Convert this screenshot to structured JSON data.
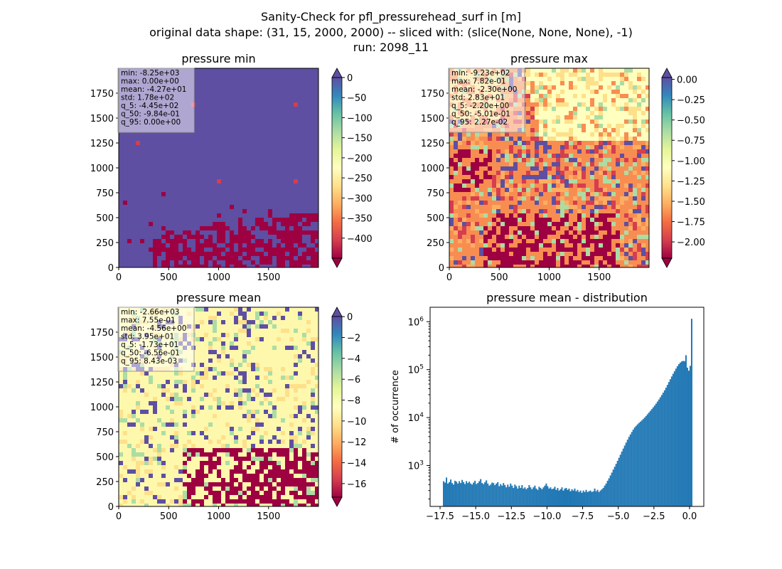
{
  "figure": {
    "title_lines": [
      "Sanity-Check for pfl_pressurehead_surf in [m]",
      "original data shape: (31, 15, 2000, 2000) -- sliced with: (slice(None, None, None), -1)",
      "run: 2098_11"
    ]
  },
  "chart_data": [
    {
      "type": "heatmap",
      "title": "pressure min",
      "xlim": [
        0,
        2000
      ],
      "ylim": [
        0,
        2000
      ],
      "xticks": [
        0,
        500,
        1000,
        1500
      ],
      "yticks": [
        0,
        250,
        500,
        750,
        1000,
        1250,
        1500,
        1750
      ],
      "colorbar": {
        "range": [
          -450,
          0
        ],
        "ticks": [
          0,
          -50,
          -100,
          -150,
          -200,
          -250,
          -300,
          -350,
          -400
        ],
        "tick_labels": [
          "0",
          "−50",
          "−100",
          "−150",
          "−200",
          "−250",
          "−300",
          "−350",
          "−400"
        ],
        "colormap": "Spectral",
        "extend": "both"
      },
      "stats": [
        "min: -8.25e+03",
        "max: 0.00e+00",
        "mean: -4.27e+01",
        "std: 1.78e+02",
        "q_5: -4.45e+02",
        "q_50: -9.84e-01",
        "q_95: 0.00e+00"
      ]
    },
    {
      "type": "heatmap",
      "title": "pressure max",
      "xlim": [
        0,
        2000
      ],
      "ylim": [
        0,
        2000
      ],
      "xticks": [
        0,
        500,
        1000,
        1500
      ],
      "yticks": [
        0,
        250,
        500,
        750,
        1000,
        1250,
        1500,
        1750
      ],
      "colorbar": {
        "range": [
          -2.2,
          0.022
        ],
        "ticks": [
          0.0,
          -0.25,
          -0.5,
          -0.75,
          -1.0,
          -1.25,
          -1.5,
          -1.75,
          -2.0
        ],
        "tick_labels": [
          "0.00",
          "−0.25",
          "−0.50",
          "−0.75",
          "−1.00",
          "−1.25",
          "−1.50",
          "−1.75",
          "−2.00"
        ],
        "colormap": "Spectral",
        "extend": "both"
      },
      "stats": [
        "min: -9.23e+02",
        "max: 7.82e-01",
        "mean: -2.30e+00",
        "std: 2.83e+01",
        "q_5: -2.20e+00",
        "q_50: -5.01e-01",
        "q_95: 2.27e-02"
      ]
    },
    {
      "type": "heatmap",
      "title": "pressure mean",
      "xlim": [
        0,
        2000
      ],
      "ylim": [
        0,
        2000
      ],
      "xticks": [
        0,
        500,
        1000,
        1500
      ],
      "yticks": [
        0,
        250,
        500,
        750,
        1000,
        1250,
        1500,
        1750
      ],
      "colorbar": {
        "range": [
          -17.3,
          0.0084
        ],
        "ticks": [
          0,
          -2,
          -4,
          -6,
          -8,
          -10,
          -12,
          -14,
          -16
        ],
        "tick_labels": [
          "0",
          "−2",
          "−4",
          "−6",
          "−8",
          "−10",
          "−12",
          "−14",
          "−16"
        ],
        "colormap": "Spectral",
        "extend": "both"
      },
      "stats": [
        "min: -2.66e+03",
        "max: 7.55e-01",
        "mean: -4.56e+00",
        "std: 3.95e+01",
        "q_5: -1.73e+01",
        "q_50: -6.56e-01",
        "q_95: 8.43e-03"
      ]
    },
    {
      "type": "bar",
      "subtype": "histogram",
      "title": "pressure mean - distribution",
      "xlabel": "",
      "ylabel": "# of occurrence",
      "yscale": "log",
      "xlim": [
        -18.2,
        1.0
      ],
      "ylim": [
        140,
        2000000
      ],
      "xticks": [
        -17.5,
        -15.0,
        -12.5,
        -10.0,
        -7.5,
        -5.0,
        -2.5,
        0.0
      ],
      "xtick_labels": [
        "−17.5",
        "−15.0",
        "−12.5",
        "−10.0",
        "−7.5",
        "−5.0",
        "−2.5",
        "0.0"
      ],
      "yticks": [
        1000,
        10000,
        100000,
        1000000
      ],
      "ytick_labels": [
        "10^3",
        "10^4",
        "10^5",
        "10^6"
      ],
      "bar_color": "#1f77b4",
      "bin_start": -17.3,
      "bin_width": 0.1,
      "values": [
        470,
        440,
        560,
        420,
        450,
        510,
        430,
        400,
        480,
        460,
        420,
        470,
        430,
        500,
        450,
        410,
        470,
        430,
        460,
        420,
        400,
        440,
        480,
        410,
        430,
        470,
        520,
        430,
        410,
        450,
        490,
        420,
        380,
        400,
        440,
        430,
        390,
        420,
        450,
        370,
        410,
        380,
        430,
        390,
        350,
        400,
        360,
        420,
        380,
        340,
        400,
        370,
        330,
        380,
        340,
        390,
        330,
        350,
        320,
        340,
        390,
        350,
        320,
        350,
        380,
        330,
        310,
        360,
        340,
        320,
        350,
        380,
        420,
        370,
        330,
        350,
        320,
        330,
        360,
        310,
        340,
        300,
        320,
        350,
        300,
        330,
        340,
        310,
        330,
        290,
        320,
        300,
        330,
        290,
        310,
        280,
        300,
        270,
        300,
        280,
        310,
        280,
        290,
        300,
        280,
        290,
        330,
        290,
        310,
        280,
        300,
        320,
        340,
        380,
        420,
        480,
        540,
        620,
        710,
        820,
        940,
        1080,
        1250,
        1450,
        1680,
        1950,
        2250,
        2600,
        3000,
        3450,
        3950,
        4450,
        5000,
        5600,
        6200,
        6700,
        7200,
        7700,
        8200,
        8700,
        9300,
        10000,
        10800,
        11700,
        12700,
        13800,
        15000,
        16300,
        17800,
        19500,
        21500,
        23800,
        26500,
        29500,
        33000,
        37000,
        42000,
        48000,
        55000,
        63000,
        72000,
        82000,
        93000,
        105000,
        118000,
        130000,
        140000,
        148000,
        152000,
        150000,
        200000,
        110000,
        95000,
        120000,
        1150000
      ]
    }
  ]
}
